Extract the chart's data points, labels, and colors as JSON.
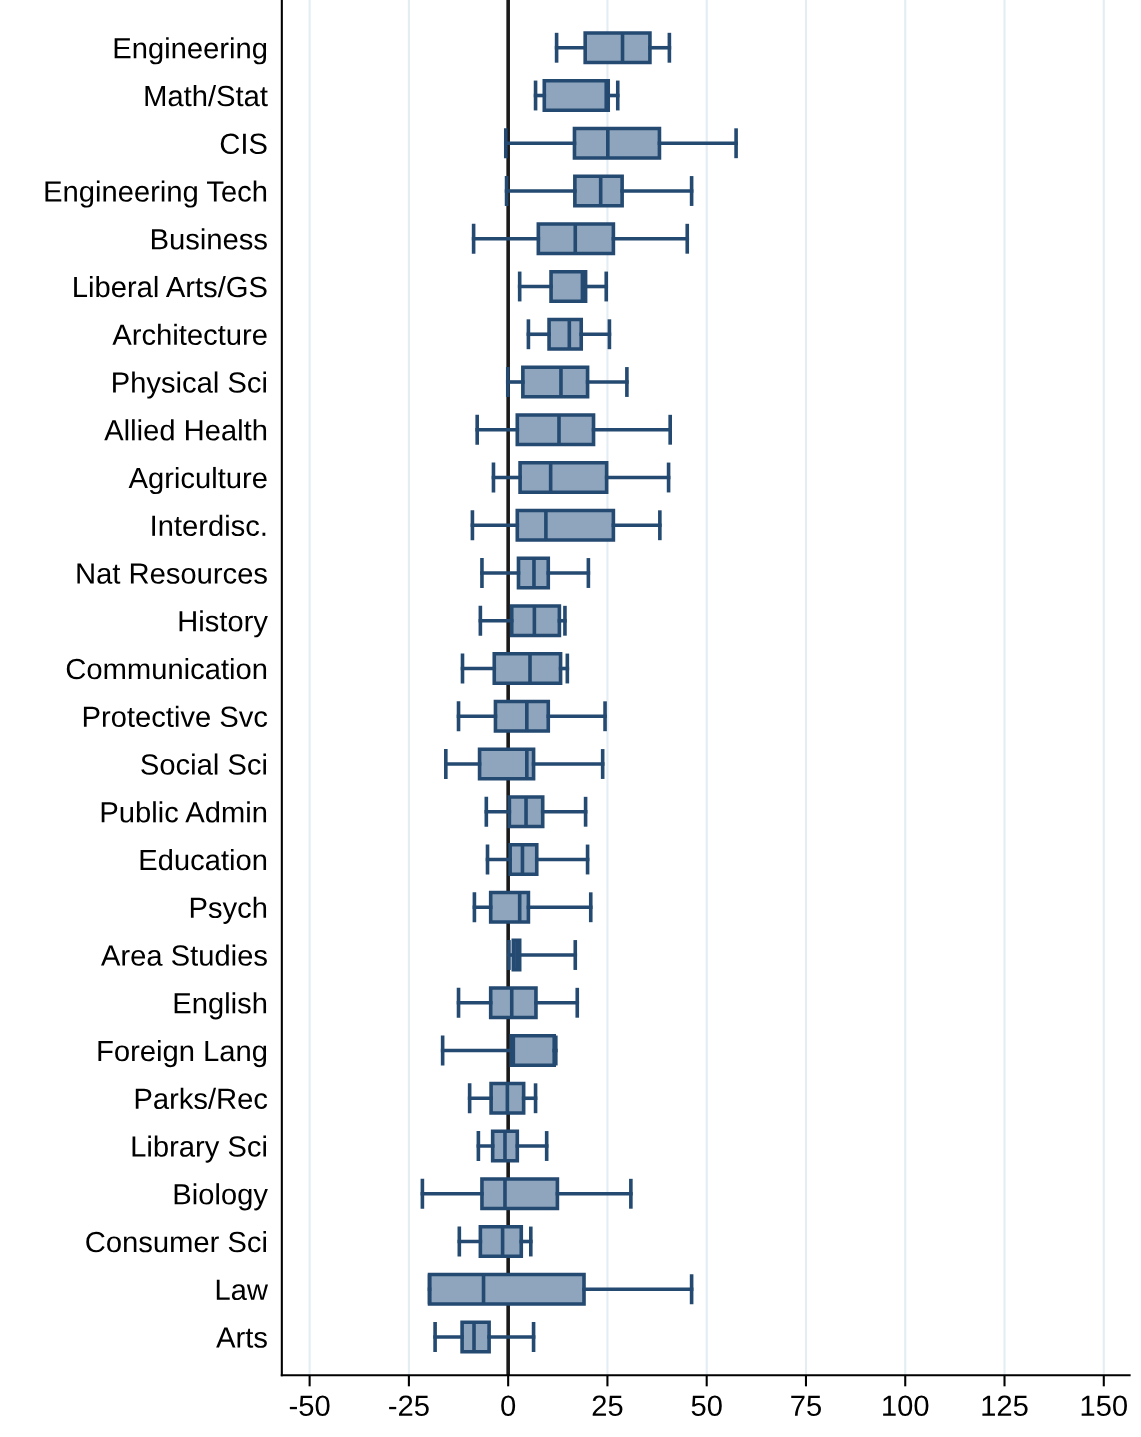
{
  "chart_data": {
    "type": "box",
    "orientation": "horizontal",
    "categories": [
      "Engineering",
      "Math/Stat",
      "CIS",
      "Engineering Tech",
      "Business",
      "Liberal Arts/GS",
      "Architecture",
      "Physical Sci",
      "Allied Health",
      "Agriculture",
      "Interdisc.",
      "Nat Resources",
      "History",
      "Communication",
      "Protective Svc",
      "Social Sci",
      "Public Admin",
      "Education",
      "Psych",
      "Area Studies",
      "English",
      "Foreign Lang",
      "Parks/Rec",
      "Library Sci",
      "Biology",
      "Consumer Sci",
      "Law",
      "Arts"
    ],
    "series": [
      {
        "color": "#8ea5bd",
        "boxes": [
          {
            "low": 12.2,
            "q1": 19.4,
            "median": 28.8,
            "q3": 35.7,
            "high": 40.6
          },
          {
            "low": 6.9,
            "q1": 9.1,
            "median": 24.7,
            "q3": 25.2,
            "high": 27.6
          },
          {
            "low": -0.6,
            "q1": 16.7,
            "median": 25.1,
            "q3": 38.1,
            "high": 57.4
          },
          {
            "low": -0.4,
            "q1": 16.8,
            "median": 23.3,
            "q3": 28.7,
            "high": 46.2
          },
          {
            "low": -8.7,
            "q1": 7.6,
            "median": 16.9,
            "q3": 26.5,
            "high": 45.1
          },
          {
            "low": 2.9,
            "q1": 10.8,
            "median": 18.7,
            "q3": 19.5,
            "high": 24.7
          },
          {
            "low": 5.1,
            "q1": 10.3,
            "median": 15.4,
            "q3": 18.4,
            "high": 25.5
          },
          {
            "low": -0.1,
            "q1": 3.7,
            "median": 13.3,
            "q3": 20.0,
            "high": 29.9
          },
          {
            "low": -7.8,
            "q1": 2.3,
            "median": 12.8,
            "q3": 21.5,
            "high": 40.8
          },
          {
            "low": -3.7,
            "q1": 3.0,
            "median": 10.7,
            "q3": 24.8,
            "high": 40.4
          },
          {
            "low": -9.0,
            "q1": 2.3,
            "median": 9.5,
            "q3": 26.5,
            "high": 38.2
          },
          {
            "low": -6.6,
            "q1": 2.6,
            "median": 6.5,
            "q3": 10.1,
            "high": 20.2
          },
          {
            "low": -7.0,
            "q1": 0.9,
            "median": 6.6,
            "q3": 12.9,
            "high": 14.3
          },
          {
            "low": -11.5,
            "q1": -3.5,
            "median": 5.5,
            "q3": 13.2,
            "high": 14.9
          },
          {
            "low": -12.5,
            "q1": -3.2,
            "median": 4.7,
            "q3": 10.1,
            "high": 24.4
          },
          {
            "low": -15.7,
            "q1": -7.2,
            "median": 4.7,
            "q3": 6.4,
            "high": 23.8
          },
          {
            "low": -5.5,
            "q1": 0.3,
            "median": 4.5,
            "q3": 8.7,
            "high": 19.5
          },
          {
            "low": -5.2,
            "q1": 0.5,
            "median": 3.6,
            "q3": 7.2,
            "high": 20.0
          },
          {
            "low": -8.5,
            "q1": -4.4,
            "median": 2.9,
            "q3": 5.1,
            "high": 20.8
          },
          {
            "low": 0.2,
            "q1": 1.3,
            "median": 2.2,
            "q3": 2.9,
            "high": 16.9
          },
          {
            "low": -12.5,
            "q1": -4.4,
            "median": 0.9,
            "q3": 7.0,
            "high": 17.4
          },
          {
            "low": -16.5,
            "q1": 0.8,
            "median": 1.3,
            "q3": 11.6,
            "high": 12.0
          },
          {
            "low": -9.7,
            "q1": -4.3,
            "median": -0.2,
            "q3": 3.9,
            "high": 6.9
          },
          {
            "low": -7.5,
            "q1": -3.9,
            "median": -0.8,
            "q3": 2.3,
            "high": 9.7
          },
          {
            "low": -21.6,
            "q1": -6.6,
            "median": -0.8,
            "q3": 12.4,
            "high": 30.9
          },
          {
            "low": -12.3,
            "q1": -7.0,
            "median": -1.4,
            "q3": 3.3,
            "high": 5.7
          },
          {
            "low": -19.8,
            "q1": -19.8,
            "median": -6.2,
            "q3": 19.1,
            "high": 46.2
          },
          {
            "low": -18.4,
            "q1": -11.6,
            "median": -8.6,
            "q3": -4.8,
            "high": 6.4
          }
        ]
      }
    ],
    "xlim": [
      -57,
      156.5
    ],
    "xticks": [
      -50,
      -25,
      0,
      25,
      50,
      75,
      100,
      125,
      150
    ],
    "grid": "x",
    "ref_lines": [
      {
        "axis": "x",
        "value": 0,
        "color": "#1a1a1a"
      }
    ]
  }
}
